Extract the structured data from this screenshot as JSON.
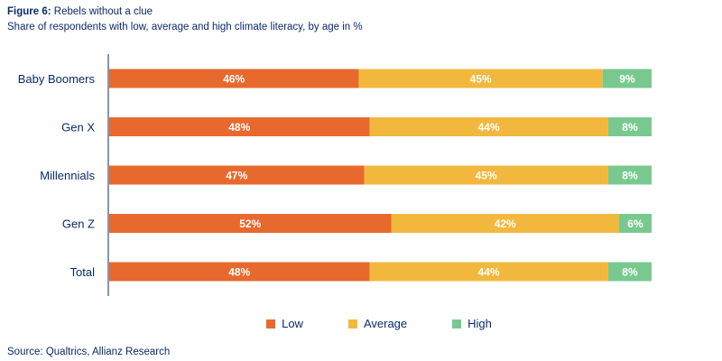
{
  "header": {
    "figure_label": "Figure 6:",
    "figure_title": "Rebels without a clue",
    "subtitle": "Share of respondents with low, average and high climate literacy, by age in %"
  },
  "footer": {
    "source": "Source: Qualtrics, Allianz Research"
  },
  "chart_data": {
    "type": "bar",
    "orientation": "horizontal",
    "stacked": true,
    "categories": [
      "Baby Boomers",
      "Gen X",
      "Millennials",
      "Gen Z",
      "Total"
    ],
    "series": [
      {
        "name": "Low",
        "color": "#e8692e",
        "values": [
          46,
          48,
          47,
          52,
          48
        ],
        "labels": [
          "46%",
          "48%",
          "47%",
          "52%",
          "48%"
        ]
      },
      {
        "name": "Average",
        "color": "#f2b83d",
        "values": [
          45,
          44,
          45,
          42,
          44
        ],
        "labels": [
          "45%",
          "44%",
          "45%",
          "42%",
          "44%"
        ]
      },
      {
        "name": "High",
        "color": "#79c98f",
        "values": [
          9,
          8,
          8,
          6,
          8
        ],
        "labels": [
          "9%",
          "8%",
          "8%",
          "6%",
          "8%"
        ]
      }
    ],
    "xlim": [
      0,
      100
    ],
    "grid": false,
    "legend": "bottom-center"
  }
}
